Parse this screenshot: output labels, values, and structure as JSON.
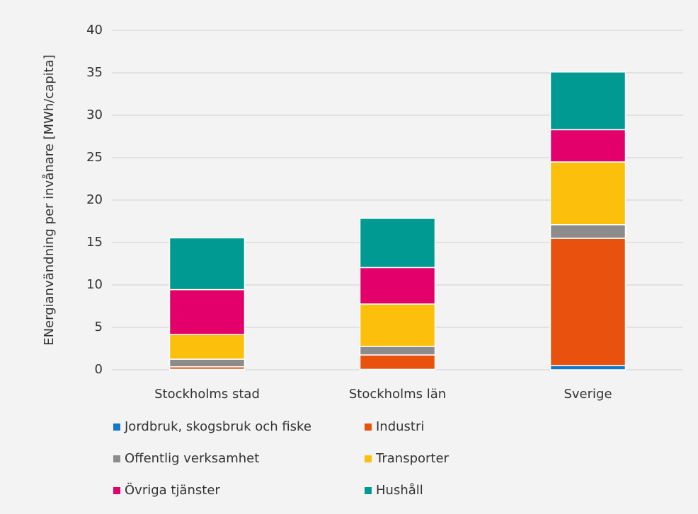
{
  "chart_data": {
    "type": "stacked_bar",
    "y_label": "ENergianvändning per invånare [MWh/capita]",
    "categories": [
      "Stockholms stad",
      "Stockholms län",
      "Sverige"
    ],
    "series": [
      {
        "name": "Jordbruk, skogsbruk och fiske",
        "color": "#1577c8",
        "values": [
          0.05,
          0.05,
          0.5
        ]
      },
      {
        "name": "Industri",
        "color": "#e8520e",
        "values": [
          0.3,
          1.7,
          15.0
        ]
      },
      {
        "name": "Offentlig verksamhet",
        "color": "#8c8c8c",
        "values": [
          0.9,
          1.0,
          1.6
        ]
      },
      {
        "name": "Transporter",
        "color": "#fbbf0c",
        "values": [
          2.9,
          5.0,
          7.4
        ]
      },
      {
        "name": "Övriga tjänster",
        "color": "#e3006b",
        "values": [
          5.3,
          4.3,
          3.8
        ]
      },
      {
        "name": "Hushåll",
        "color": "#009a93",
        "values": [
          6.1,
          5.8,
          6.8
        ]
      }
    ],
    "ylim": [
      0,
      40
    ],
    "yticks": [
      0,
      5,
      10,
      15,
      20,
      25,
      30,
      35,
      40
    ],
    "grid": true,
    "legend": "bottom"
  }
}
